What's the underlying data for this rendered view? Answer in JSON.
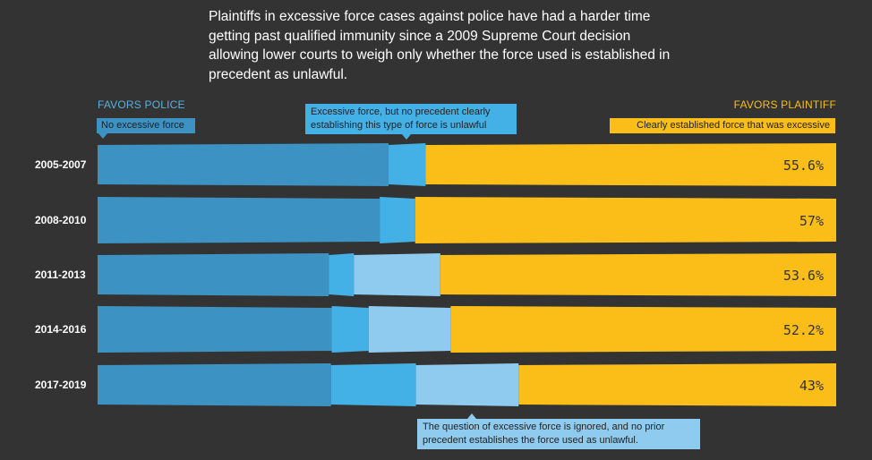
{
  "title": "Plaintiffs in excessive force cases against police have had a harder time getting past qualified immunity since a 2009 Supreme Court decision allowing lower courts to weigh only whether the force used is established in precedent as unlawful.",
  "labels": {
    "favors_police": "FAVORS POLICE",
    "favors_plaintiff": "FAVORS PLAINTIFF",
    "no_excessive_force": "No excessive force",
    "no_precedent": "Excessive force, but no precedent clearly establishing this type of force is unlawful",
    "clearly_established": "Clearly established force that was excessive",
    "question_ignored": "The question of excessive force is ignored, and no prior precedent establishes the force used as unlawful."
  },
  "colors": {
    "background": "#333333",
    "no_excessive_force": "#3c93c3",
    "no_precedent": "#44b1e6",
    "question_ignored": "#8ecbee",
    "clearly_established": "#fbbd18",
    "police_label": "#5ab0e0",
    "plaintiff_label": "#fbbd18",
    "text": "#ffffff"
  },
  "chart_data": {
    "type": "bar",
    "orientation": "horizontal",
    "stacked": true,
    "normalized": true,
    "categories": [
      "2005-2007",
      "2008-2010",
      "2011-2013",
      "2014-2016",
      "2017-2019"
    ],
    "series": [
      {
        "name": "No excessive force",
        "values": [
          39.4,
          38.2,
          31.3,
          31.7,
          31.6
        ]
      },
      {
        "name": "Excessive force, but no precedent clearly establishing this type of force is unlawful",
        "values": [
          5.0,
          4.8,
          3.4,
          5.0,
          11.5
        ]
      },
      {
        "name": "The question of excessive force is ignored, and no prior precedent establishes the force used as unlawful.",
        "values": [
          0,
          0,
          11.7,
          11.1,
          13.9
        ]
      },
      {
        "name": "Clearly established force that was excessive",
        "values": [
          55.6,
          57,
          53.6,
          52.2,
          43
        ]
      }
    ],
    "value_labels": [
      "55.6%",
      "57%",
      "53.6%",
      "52.2%",
      "43%"
    ],
    "xlim": [
      0,
      100
    ],
    "legend": "callouts"
  }
}
